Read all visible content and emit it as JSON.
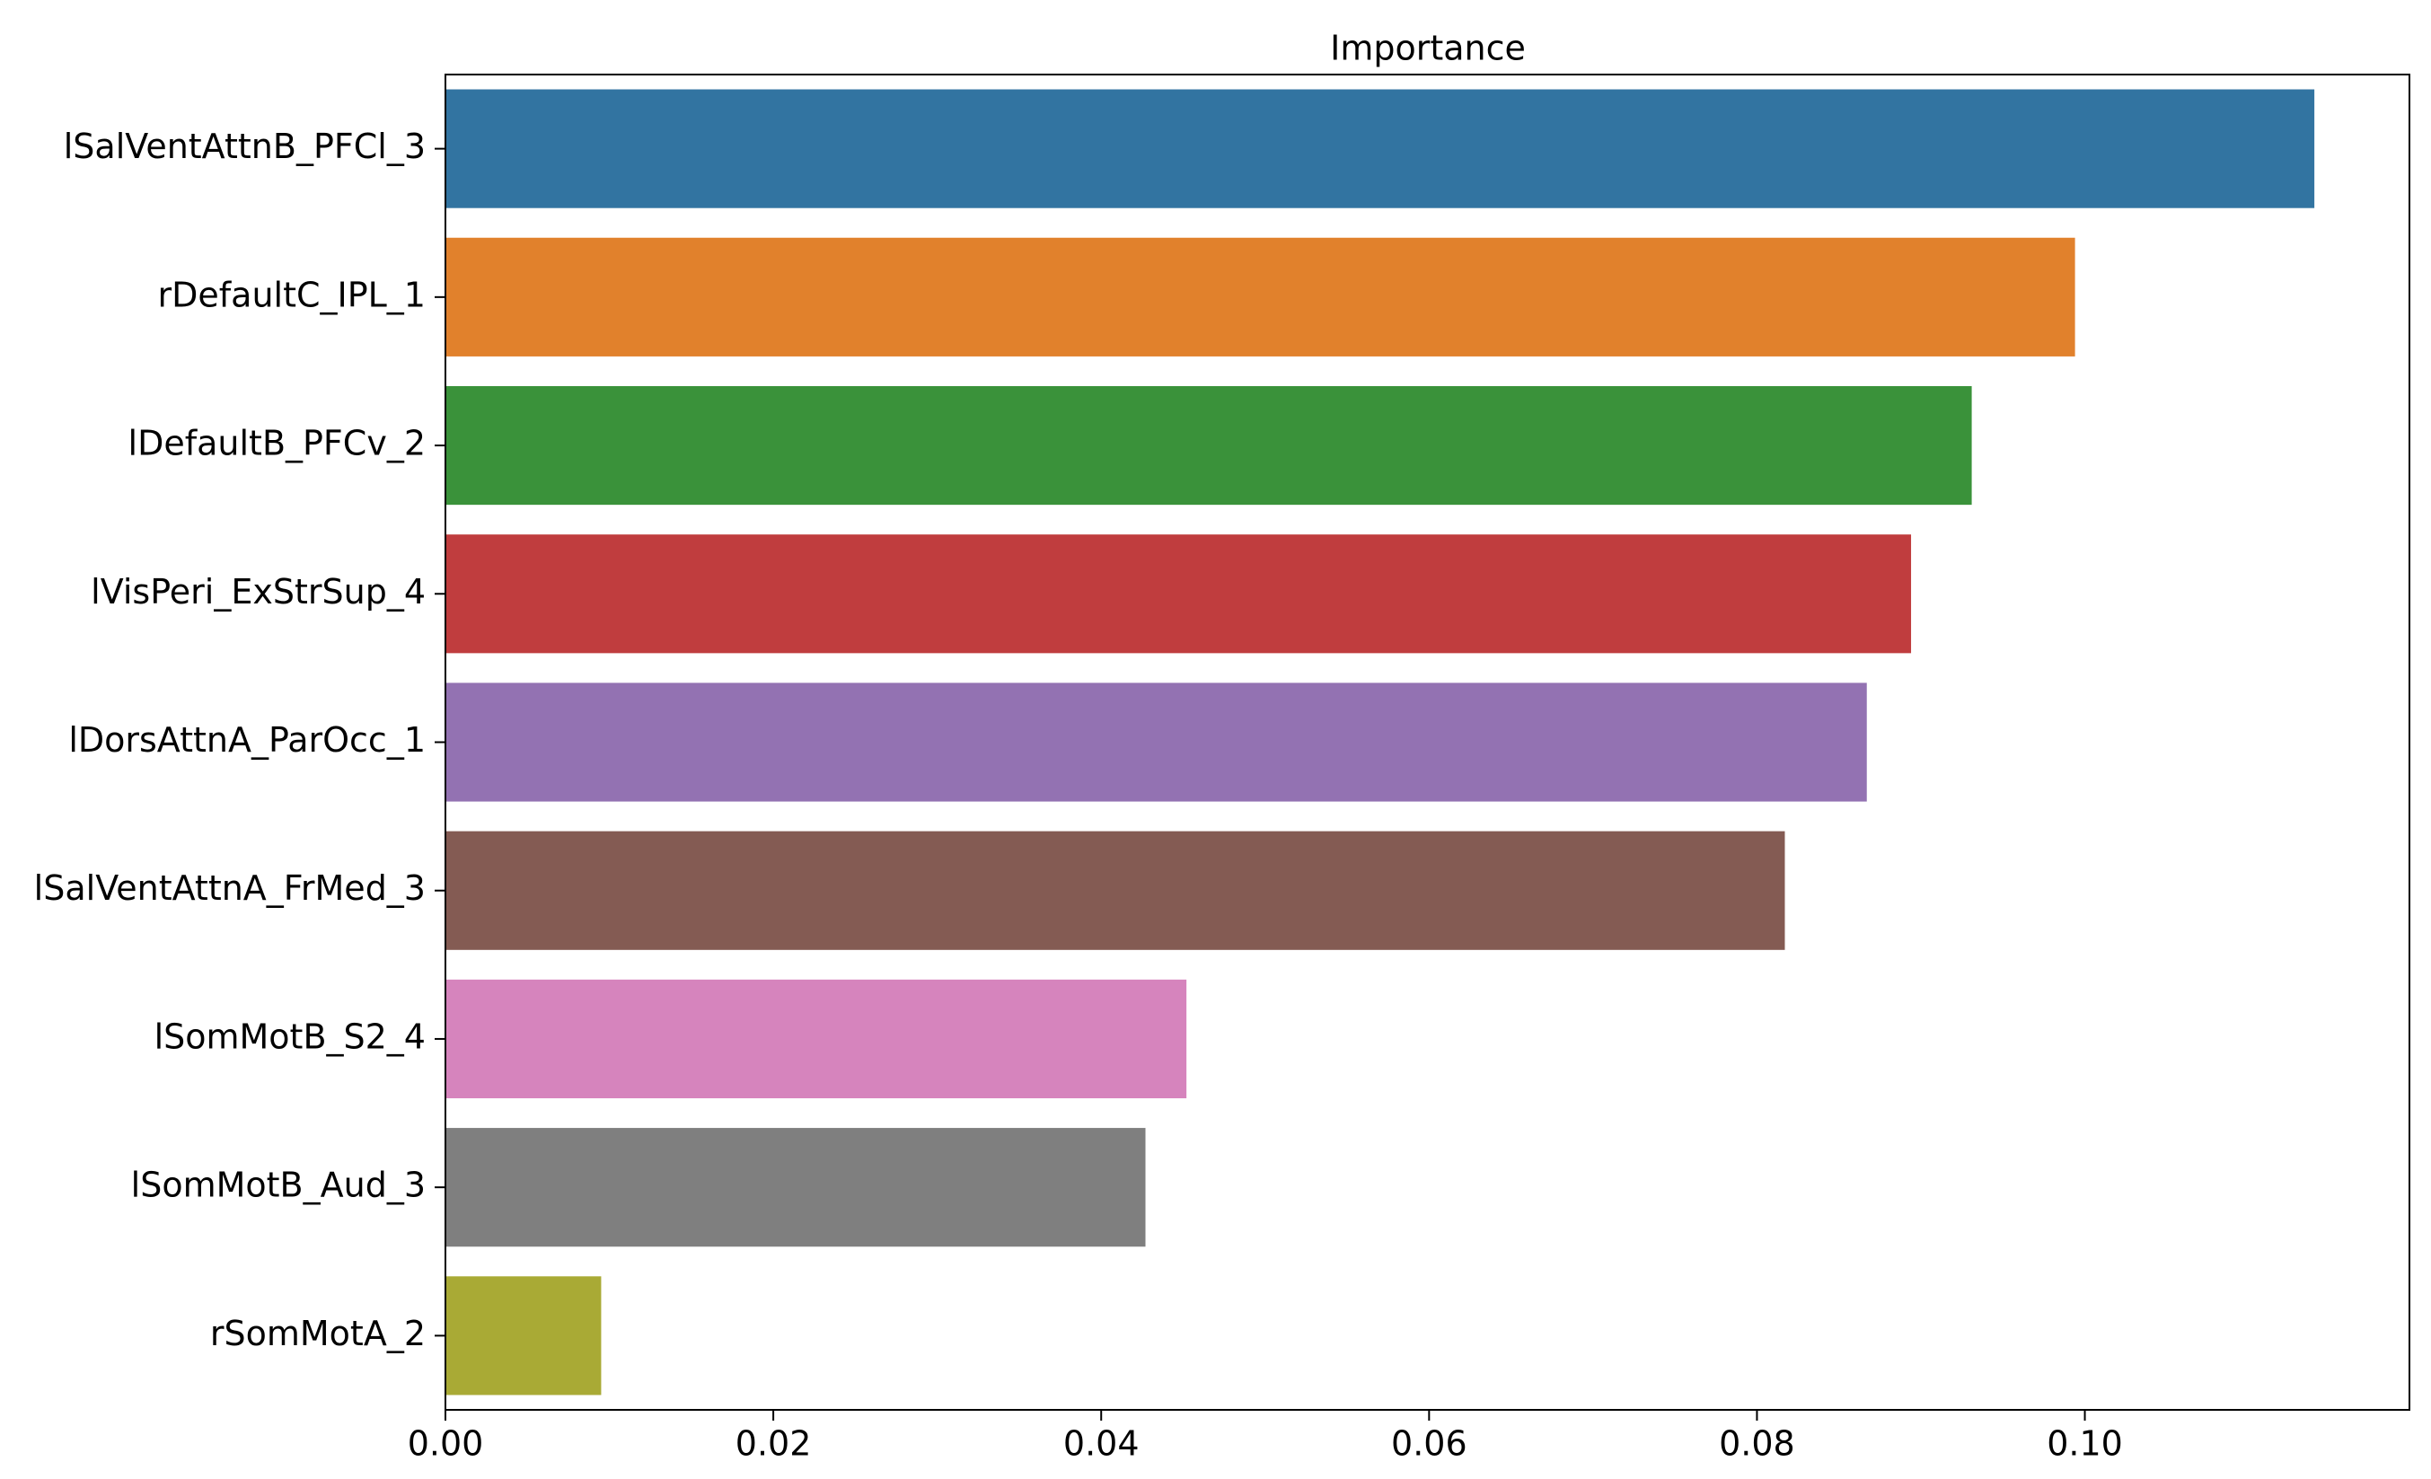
{
  "chart_data": {
    "type": "barh",
    "title": "Importance",
    "categories": [
      "lSalVentAttnB_PFCl_3",
      "rDefaultC_IPL_1",
      "lDefaultB_PFCv_2",
      "lVisPeri_ExStrSup_4",
      "lDorsAttnA_ParOcc_1",
      "lSalVentAttnA_FrMed_3",
      "lSomMotB_S2_4",
      "lSomMotB_Aud_3",
      "rSomMotA_2"
    ],
    "values": [
      0.114,
      0.0994,
      0.0931,
      0.0894,
      0.0867,
      0.0817,
      0.0452,
      0.0427,
      0.0095
    ],
    "colors": [
      "#3274a1",
      "#e1812c",
      "#3a923a",
      "#c03d3e",
      "#9372b2",
      "#845b53",
      "#d684bd",
      "#7f7f7f",
      "#a9aa35"
    ],
    "xlim": [
      0,
      0.1198
    ],
    "xticks": [
      {
        "value": 0,
        "label": "0.00"
      },
      {
        "value": 0.02,
        "label": "0.02"
      },
      {
        "value": 0.04,
        "label": "0.04"
      },
      {
        "value": 0.06,
        "label": "0.06"
      },
      {
        "value": 0.08,
        "label": "0.08"
      },
      {
        "value": 0.1,
        "label": "0.10"
      }
    ]
  }
}
